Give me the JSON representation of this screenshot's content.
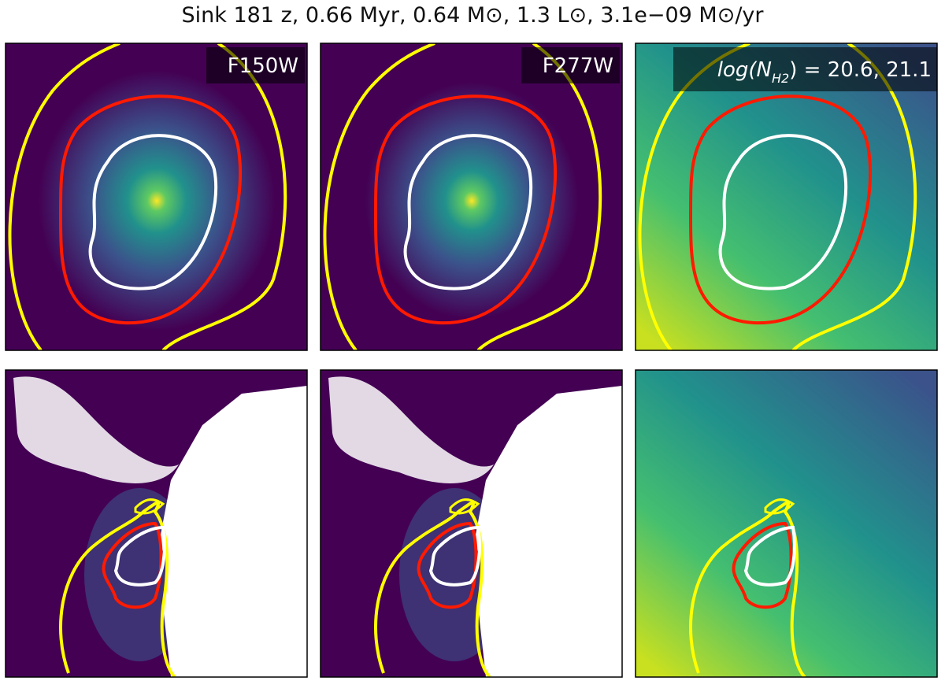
{
  "title": "Sink 181 z, 0.66 Myr, 0.64 M⊙, 1.3 L⊙, 3.1e−09 M⊙/yr",
  "panels": [
    {
      "label": "F150W"
    },
    {
      "label": "F277W"
    },
    {
      "label_parts": [
        "log(N",
        "H2",
        ") = 20.6, 21.1"
      ]
    }
  ]
}
